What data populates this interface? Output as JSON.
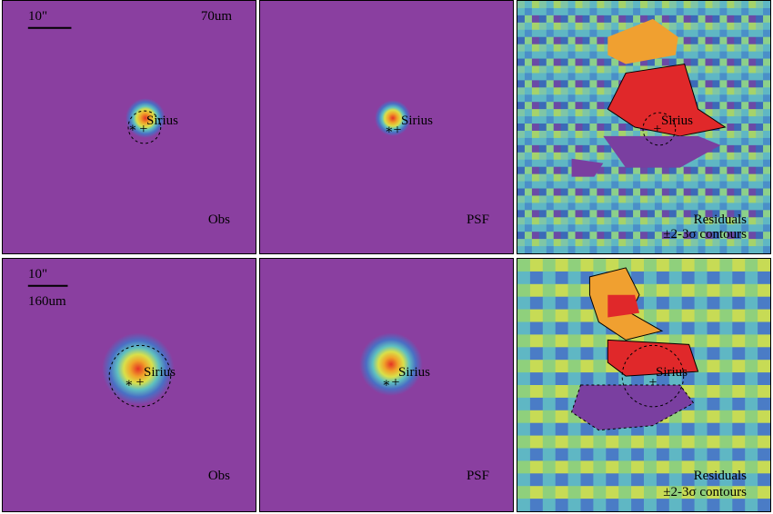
{
  "panels": {
    "p70_obs": {
      "band_label": "70um",
      "kind_label": "Obs",
      "scale_label": "10\"",
      "source_label": "Sirius"
    },
    "p70_psf": {
      "kind_label": "PSF",
      "source_label": "Sirius"
    },
    "p70_res": {
      "kind_label": "Residuals",
      "contour_label": "±2-3σ contours",
      "source_label": "Sirius"
    },
    "p160_obs": {
      "band_label": "160um",
      "kind_label": "Obs",
      "scale_label": "10\"",
      "source_label": "Sirius"
    },
    "p160_psf": {
      "kind_label": "PSF",
      "source_label": "Sirius"
    },
    "p160_res": {
      "kind_label": "Residuals",
      "contour_label": "±2-3σ contours",
      "source_label": "Sirius"
    }
  },
  "colors": {
    "background": "#8a3fa0",
    "peak": "#e0282a",
    "residual_mid": "#5fb7c4",
    "contour": "#000000"
  }
}
